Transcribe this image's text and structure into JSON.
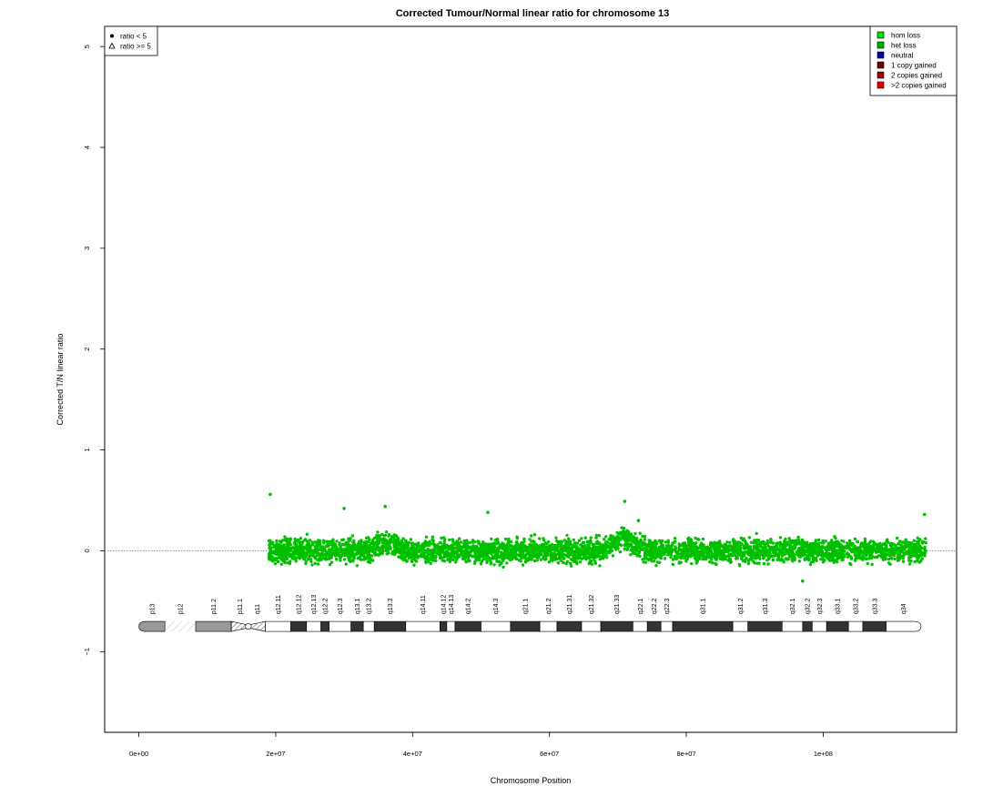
{
  "chart_data": {
    "type": "scatter",
    "title": "Corrected Tumour/Normal linear ratio for chromosome  13",
    "xlabel": "Chromosome Position",
    "ylabel": "Corrected T/N linear ratio",
    "xlim": [
      -5000000,
      119500000
    ],
    "ylim": [
      -1.8,
      5.2
    ],
    "x_ticks": [
      {
        "value": 0,
        "label": "0e+00"
      },
      {
        "value": 20000000,
        "label": "2e+07"
      },
      {
        "value": 40000000,
        "label": "4e+07"
      },
      {
        "value": 60000000,
        "label": "6e+07"
      },
      {
        "value": 80000000,
        "label": "8e+07"
      },
      {
        "value": 100000000,
        "label": "1e+08"
      }
    ],
    "y_ticks": [
      {
        "value": -1,
        "label": "−1"
      },
      {
        "value": 0,
        "label": "0"
      },
      {
        "value": 1,
        "label": "1"
      },
      {
        "value": 2,
        "label": "2"
      },
      {
        "value": 3,
        "label": "3"
      },
      {
        "value": 4,
        "label": "4"
      },
      {
        "value": 5,
        "label": "5"
      }
    ],
    "reference_line": {
      "y": 0,
      "style": "dotted",
      "color": "#888888"
    },
    "series": [
      {
        "name": "het loss",
        "color": "#00c000",
        "marker": "dot",
        "x_range": [
          19000000,
          115000000
        ],
        "y_center": 0.0,
        "y_spread": 0.35,
        "points_estimated": [
          [
            19200000,
            0.56
          ],
          [
            21000000,
            0.05
          ],
          [
            24000000,
            -0.05
          ],
          [
            27000000,
            0.1
          ],
          [
            30000000,
            0.42
          ],
          [
            33000000,
            0.0
          ],
          [
            36000000,
            0.44
          ],
          [
            39000000,
            0.1
          ],
          [
            42000000,
            0.0
          ],
          [
            45000000,
            -0.05
          ],
          [
            48000000,
            0.05
          ],
          [
            51000000,
            0.38
          ],
          [
            54000000,
            0.1
          ],
          [
            57000000,
            0.0
          ],
          [
            60000000,
            0.05
          ],
          [
            63000000,
            0.0
          ],
          [
            66000000,
            0.1
          ],
          [
            69000000,
            0.15
          ],
          [
            71000000,
            0.49
          ],
          [
            73000000,
            0.3
          ],
          [
            76000000,
            0.0
          ],
          [
            79000000,
            0.05
          ],
          [
            82000000,
            -0.05
          ],
          [
            85000000,
            0.0
          ],
          [
            88000000,
            -0.05
          ],
          [
            91000000,
            0.0
          ],
          [
            94000000,
            -0.05
          ],
          [
            97000000,
            -0.3
          ],
          [
            100000000,
            -0.05
          ],
          [
            103000000,
            0.0
          ],
          [
            106000000,
            0.05
          ],
          [
            109000000,
            0.0
          ],
          [
            112000000,
            0.05
          ],
          [
            114800000,
            0.36
          ]
        ]
      }
    ],
    "shape_legend": {
      "placement": "top-left",
      "items": [
        {
          "symbol": "filled-circle",
          "label": "ratio < 5"
        },
        {
          "symbol": "open-triangle",
          "label": "ratio >= 5"
        }
      ]
    },
    "legend": {
      "placement": "top-right",
      "items": [
        {
          "label": "hom loss",
          "color": "#00e000"
        },
        {
          "label": "het loss",
          "color": "#00b000"
        },
        {
          "label": "neutral",
          "color": "#0000a0"
        },
        {
          "label": "1 copy gained",
          "color": "#700000"
        },
        {
          "label": "2 copies gained",
          "color": "#a00000"
        },
        {
          "label": ">2 copies gained",
          "color": "#e00000"
        }
      ]
    },
    "ideogram": {
      "y_position": -0.75,
      "bands": [
        {
          "name": "p13",
          "start": 0,
          "end": 3800000,
          "stain": "gvar"
        },
        {
          "name": "p12",
          "start": 3800000,
          "end": 8300000,
          "stain": "stalk"
        },
        {
          "name": "p11.2",
          "start": 8300000,
          "end": 13500000,
          "stain": "gvar"
        },
        {
          "name": "p11.1",
          "start": 13500000,
          "end": 16000000,
          "stain": "acen"
        },
        {
          "name": "q11",
          "start": 16000000,
          "end": 18500000,
          "stain": "acen"
        },
        {
          "name": "q12.11",
          "start": 18500000,
          "end": 22200000,
          "stain": "gneg"
        },
        {
          "name": "q12.12",
          "start": 22200000,
          "end": 24500000,
          "stain": "gpos"
        },
        {
          "name": "q12.13",
          "start": 24500000,
          "end": 26600000,
          "stain": "gneg"
        },
        {
          "name": "q12.2",
          "start": 26600000,
          "end": 27800000,
          "stain": "gpos"
        },
        {
          "name": "q12.3",
          "start": 27800000,
          "end": 31000000,
          "stain": "gneg"
        },
        {
          "name": "q13.1",
          "start": 31000000,
          "end": 32800000,
          "stain": "gpos"
        },
        {
          "name": "q13.2",
          "start": 32800000,
          "end": 34400000,
          "stain": "gneg"
        },
        {
          "name": "q13.3",
          "start": 34400000,
          "end": 39000000,
          "stain": "gpos"
        },
        {
          "name": "q14.11",
          "start": 39000000,
          "end": 44000000,
          "stain": "gneg"
        },
        {
          "name": "q14.12",
          "start": 44000000,
          "end": 45000000,
          "stain": "gpos"
        },
        {
          "name": "q14.13",
          "start": 45000000,
          "end": 46200000,
          "stain": "gneg"
        },
        {
          "name": "q14.2",
          "start": 46200000,
          "end": 50000000,
          "stain": "gpos"
        },
        {
          "name": "q14.3",
          "start": 50000000,
          "end": 54300000,
          "stain": "gneg"
        },
        {
          "name": "q21.1",
          "start": 54300000,
          "end": 58600000,
          "stain": "gpos"
        },
        {
          "name": "q21.2",
          "start": 58600000,
          "end": 61100000,
          "stain": "gneg"
        },
        {
          "name": "q21.31",
          "start": 61100000,
          "end": 64700000,
          "stain": "gpos"
        },
        {
          "name": "q21.32",
          "start": 64700000,
          "end": 67500000,
          "stain": "gneg"
        },
        {
          "name": "q21.33",
          "start": 67500000,
          "end": 72200000,
          "stain": "gpos"
        },
        {
          "name": "q22.1",
          "start": 72200000,
          "end": 74300000,
          "stain": "gneg"
        },
        {
          "name": "q22.2",
          "start": 74300000,
          "end": 76300000,
          "stain": "gpos"
        },
        {
          "name": "q22.3",
          "start": 76300000,
          "end": 78000000,
          "stain": "gneg"
        },
        {
          "name": "q31.1",
          "start": 78000000,
          "end": 86800000,
          "stain": "gpos"
        },
        {
          "name": "q31.2",
          "start": 86800000,
          "end": 89000000,
          "stain": "gneg"
        },
        {
          "name": "q31.3",
          "start": 89000000,
          "end": 94000000,
          "stain": "gpos"
        },
        {
          "name": "q32.1",
          "start": 94000000,
          "end": 97000000,
          "stain": "gneg"
        },
        {
          "name": "q32.2",
          "start": 97000000,
          "end": 98400000,
          "stain": "gpos"
        },
        {
          "name": "q32.3",
          "start": 98400000,
          "end": 100500000,
          "stain": "gneg"
        },
        {
          "name": "q33.1",
          "start": 100500000,
          "end": 103700000,
          "stain": "gpos"
        },
        {
          "name": "q33.2",
          "start": 103700000,
          "end": 105800000,
          "stain": "gneg"
        },
        {
          "name": "q33.3",
          "start": 105800000,
          "end": 109200000,
          "stain": "gpos"
        },
        {
          "name": "q34",
          "start": 109200000,
          "end": 114300000,
          "stain": "gneg"
        }
      ]
    }
  }
}
